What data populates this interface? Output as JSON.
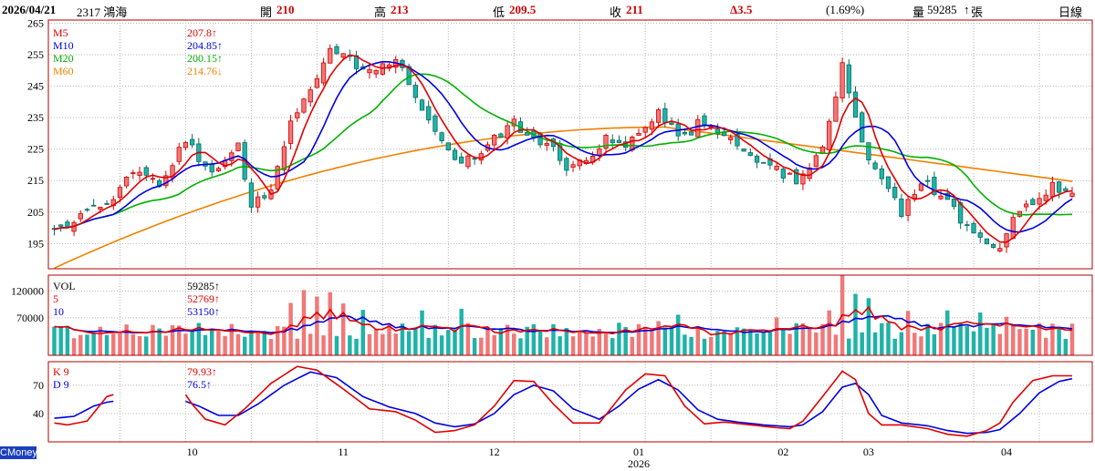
{
  "header": {
    "date": "2026/04/21",
    "stock": "2317 鴻海",
    "open_label": "開",
    "open": "210",
    "high_label": "高",
    "high": "213",
    "low_label": "低",
    "low": "209.5",
    "close_label": "收",
    "close": "211",
    "change": "Δ3.5",
    "change_pct": "(1.69%)",
    "volume_label": "量",
    "volume": "59285",
    "volume_unit": "張",
    "period": "日線"
  },
  "badge": "CMoney",
  "colors": {
    "up": "#f07878",
    "up_line": "#d40000",
    "down": "#1fb3a8",
    "down_line": "#0b6b60",
    "ma5": "#e00000",
    "ma10": "#0000e0",
    "ma20": "#00b000",
    "ma60": "#f08000",
    "k": "#e00000",
    "d": "#0000e0",
    "grid": "#b8b8b8",
    "frame": "#b00000"
  },
  "chart_data": [
    {
      "type": "candlestick",
      "panel": "price",
      "ylim": [
        187,
        266
      ],
      "yticks": [
        195,
        205,
        215,
        225,
        235,
        245,
        255,
        265
      ],
      "legend": [
        {
          "name": "M5",
          "value": "207.8↑",
          "color": "#e00000"
        },
        {
          "name": "M10",
          "value": "204.85↑",
          "color": "#0000e0"
        },
        {
          "name": "M20",
          "value": "200.15↑",
          "color": "#00b000"
        },
        {
          "name": "M60",
          "value": "214.76↓",
          "color": "#f08000"
        }
      ],
      "month_labels": [
        {
          "label": "10",
          "day": 21
        },
        {
          "label": "11",
          "day": 44
        },
        {
          "label": "12",
          "day": 67
        },
        {
          "label": "01",
          "day": 89
        },
        {
          "label": "02",
          "day": 111
        },
        {
          "label": "03",
          "day": 124
        },
        {
          "label": "04",
          "day": 145
        }
      ],
      "year_label": {
        "label": "2026",
        "day": 89
      },
      "anchors": [
        [
          0,
          199
        ],
        [
          4,
          204
        ],
        [
          8,
          208
        ],
        [
          12,
          217
        ],
        [
          16,
          214
        ],
        [
          20,
          228
        ],
        [
          24,
          217
        ],
        [
          28,
          226
        ],
        [
          30,
          207
        ],
        [
          33,
          213
        ],
        [
          36,
          233
        ],
        [
          40,
          248
        ],
        [
          42,
          258
        ],
        [
          44,
          255
        ],
        [
          47,
          249
        ],
        [
          50,
          251
        ],
        [
          52,
          253
        ],
        [
          54,
          247
        ],
        [
          57,
          234
        ],
        [
          60,
          226
        ],
        [
          62,
          220
        ],
        [
          65,
          224
        ],
        [
          67,
          229
        ],
        [
          70,
          233
        ],
        [
          73,
          229
        ],
        [
          76,
          225
        ],
        [
          78,
          217
        ],
        [
          81,
          222
        ],
        [
          84,
          228
        ],
        [
          87,
          227
        ],
        [
          90,
          232
        ],
        [
          92,
          237
        ],
        [
          94,
          232
        ],
        [
          96,
          229
        ],
        [
          98,
          233
        ],
        [
          101,
          231
        ],
        [
          104,
          226
        ],
        [
          107,
          222
        ],
        [
          110,
          218
        ],
        [
          113,
          215
        ],
        [
          115,
          220
        ],
        [
          117,
          226
        ],
        [
          119,
          240
        ],
        [
          120,
          252
        ],
        [
          122,
          235
        ],
        [
          124,
          222
        ],
        [
          127,
          213
        ],
        [
          129,
          205
        ],
        [
          132,
          215
        ],
        [
          135,
          210
        ],
        [
          138,
          203
        ],
        [
          141,
          196
        ],
        [
          144,
          195
        ],
        [
          146,
          203
        ],
        [
          149,
          208
        ],
        [
          152,
          213
        ],
        [
          155,
          211
        ]
      ],
      "ma60_start": 187.2,
      "ma60_end": 214.76
    },
    {
      "type": "bar",
      "panel": "volume",
      "ylim": [
        0,
        150000
      ],
      "yticks": [
        70000,
        120000
      ],
      "legend": [
        {
          "name": "VOL",
          "value": "59285↑",
          "color": "#000000"
        },
        {
          "name": "5",
          "value": "52769↑",
          "color": "#e00000"
        },
        {
          "name": "10",
          "value": "53150↑",
          "color": "#0000e0"
        }
      ],
      "spikes": [
        [
          36,
          98000
        ],
        [
          38,
          122000
        ],
        [
          40,
          110000
        ],
        [
          42,
          118000
        ],
        [
          44,
          97000
        ],
        [
          47,
          85000
        ],
        [
          56,
          84000
        ],
        [
          62,
          87000
        ],
        [
          92,
          64000
        ],
        [
          95,
          76000
        ],
        [
          110,
          71000
        ],
        [
          118,
          84000
        ],
        [
          120,
          155000
        ],
        [
          122,
          115000
        ],
        [
          124,
          107000
        ],
        [
          130,
          83000
        ],
        [
          136,
          84000
        ],
        [
          141,
          80000
        ],
        [
          145,
          72000
        ],
        [
          150,
          60000
        ]
      ]
    },
    {
      "type": "line",
      "panel": "kd",
      "ylim": [
        10,
        95
      ],
      "yticks": [
        40,
        70
      ],
      "legend": [
        {
          "name": "K 9",
          "value": "79.93↑",
          "color": "#e00000"
        },
        {
          "name": "D 9",
          "value": "76.5↑",
          "color": "#0000e0"
        }
      ],
      "gap": [
        9,
        20
      ],
      "k_anchors": [
        [
          0,
          30
        ],
        [
          2,
          28
        ],
        [
          5,
          32
        ],
        [
          8,
          58
        ],
        [
          9,
          60
        ],
        [
          20,
          60
        ],
        [
          21,
          50
        ],
        [
          23,
          34
        ],
        [
          26,
          28
        ],
        [
          29,
          45
        ],
        [
          33,
          72
        ],
        [
          37,
          90
        ],
        [
          40,
          86
        ],
        [
          44,
          66
        ],
        [
          48,
          45
        ],
        [
          52,
          42
        ],
        [
          55,
          33
        ],
        [
          58,
          20
        ],
        [
          61,
          22
        ],
        [
          64,
          28
        ],
        [
          67,
          48
        ],
        [
          70,
          75
        ],
        [
          73,
          74
        ],
        [
          76,
          50
        ],
        [
          79,
          30
        ],
        [
          83,
          30
        ],
        [
          87,
          65
        ],
        [
          90,
          82
        ],
        [
          93,
          80
        ],
        [
          96,
          48
        ],
        [
          99,
          29
        ],
        [
          102,
          31
        ],
        [
          106,
          28
        ],
        [
          110,
          25
        ],
        [
          112,
          24
        ],
        [
          114,
          32
        ],
        [
          117,
          58
        ],
        [
          120,
          85
        ],
        [
          122,
          76
        ],
        [
          124,
          40
        ],
        [
          126,
          28
        ],
        [
          129,
          28
        ],
        [
          133,
          24
        ],
        [
          136,
          18
        ],
        [
          139,
          16
        ],
        [
          142,
          22
        ],
        [
          144,
          30
        ],
        [
          146,
          52
        ],
        [
          149,
          75
        ],
        [
          152,
          80
        ],
        [
          155,
          80
        ]
      ],
      "d_anchors": [
        [
          0,
          35
        ],
        [
          3,
          37
        ],
        [
          6,
          48
        ],
        [
          8,
          52
        ],
        [
          9,
          53
        ],
        [
          20,
          53
        ],
        [
          22,
          48
        ],
        [
          25,
          38
        ],
        [
          28,
          38
        ],
        [
          31,
          50
        ],
        [
          35,
          70
        ],
        [
          39,
          84
        ],
        [
          43,
          78
        ],
        [
          47,
          58
        ],
        [
          51,
          47
        ],
        [
          55,
          40
        ],
        [
          58,
          30
        ],
        [
          61,
          26
        ],
        [
          64,
          29
        ],
        [
          67,
          40
        ],
        [
          70,
          60
        ],
        [
          73,
          70
        ],
        [
          76,
          64
        ],
        [
          79,
          45
        ],
        [
          83,
          34
        ],
        [
          86,
          48
        ],
        [
          89,
          66
        ],
        [
          92,
          76
        ],
        [
          95,
          65
        ],
        [
          98,
          44
        ],
        [
          101,
          34
        ],
        [
          104,
          31
        ],
        [
          108,
          28
        ],
        [
          112,
          26
        ],
        [
          114,
          28
        ],
        [
          117,
          42
        ],
        [
          120,
          68
        ],
        [
          122,
          72
        ],
        [
          124,
          60
        ],
        [
          126,
          38
        ],
        [
          129,
          30
        ],
        [
          133,
          27
        ],
        [
          136,
          22
        ],
        [
          139,
          19
        ],
        [
          142,
          20
        ],
        [
          144,
          23
        ],
        [
          147,
          40
        ],
        [
          150,
          62
        ],
        [
          153,
          74
        ],
        [
          155,
          77
        ]
      ]
    }
  ]
}
